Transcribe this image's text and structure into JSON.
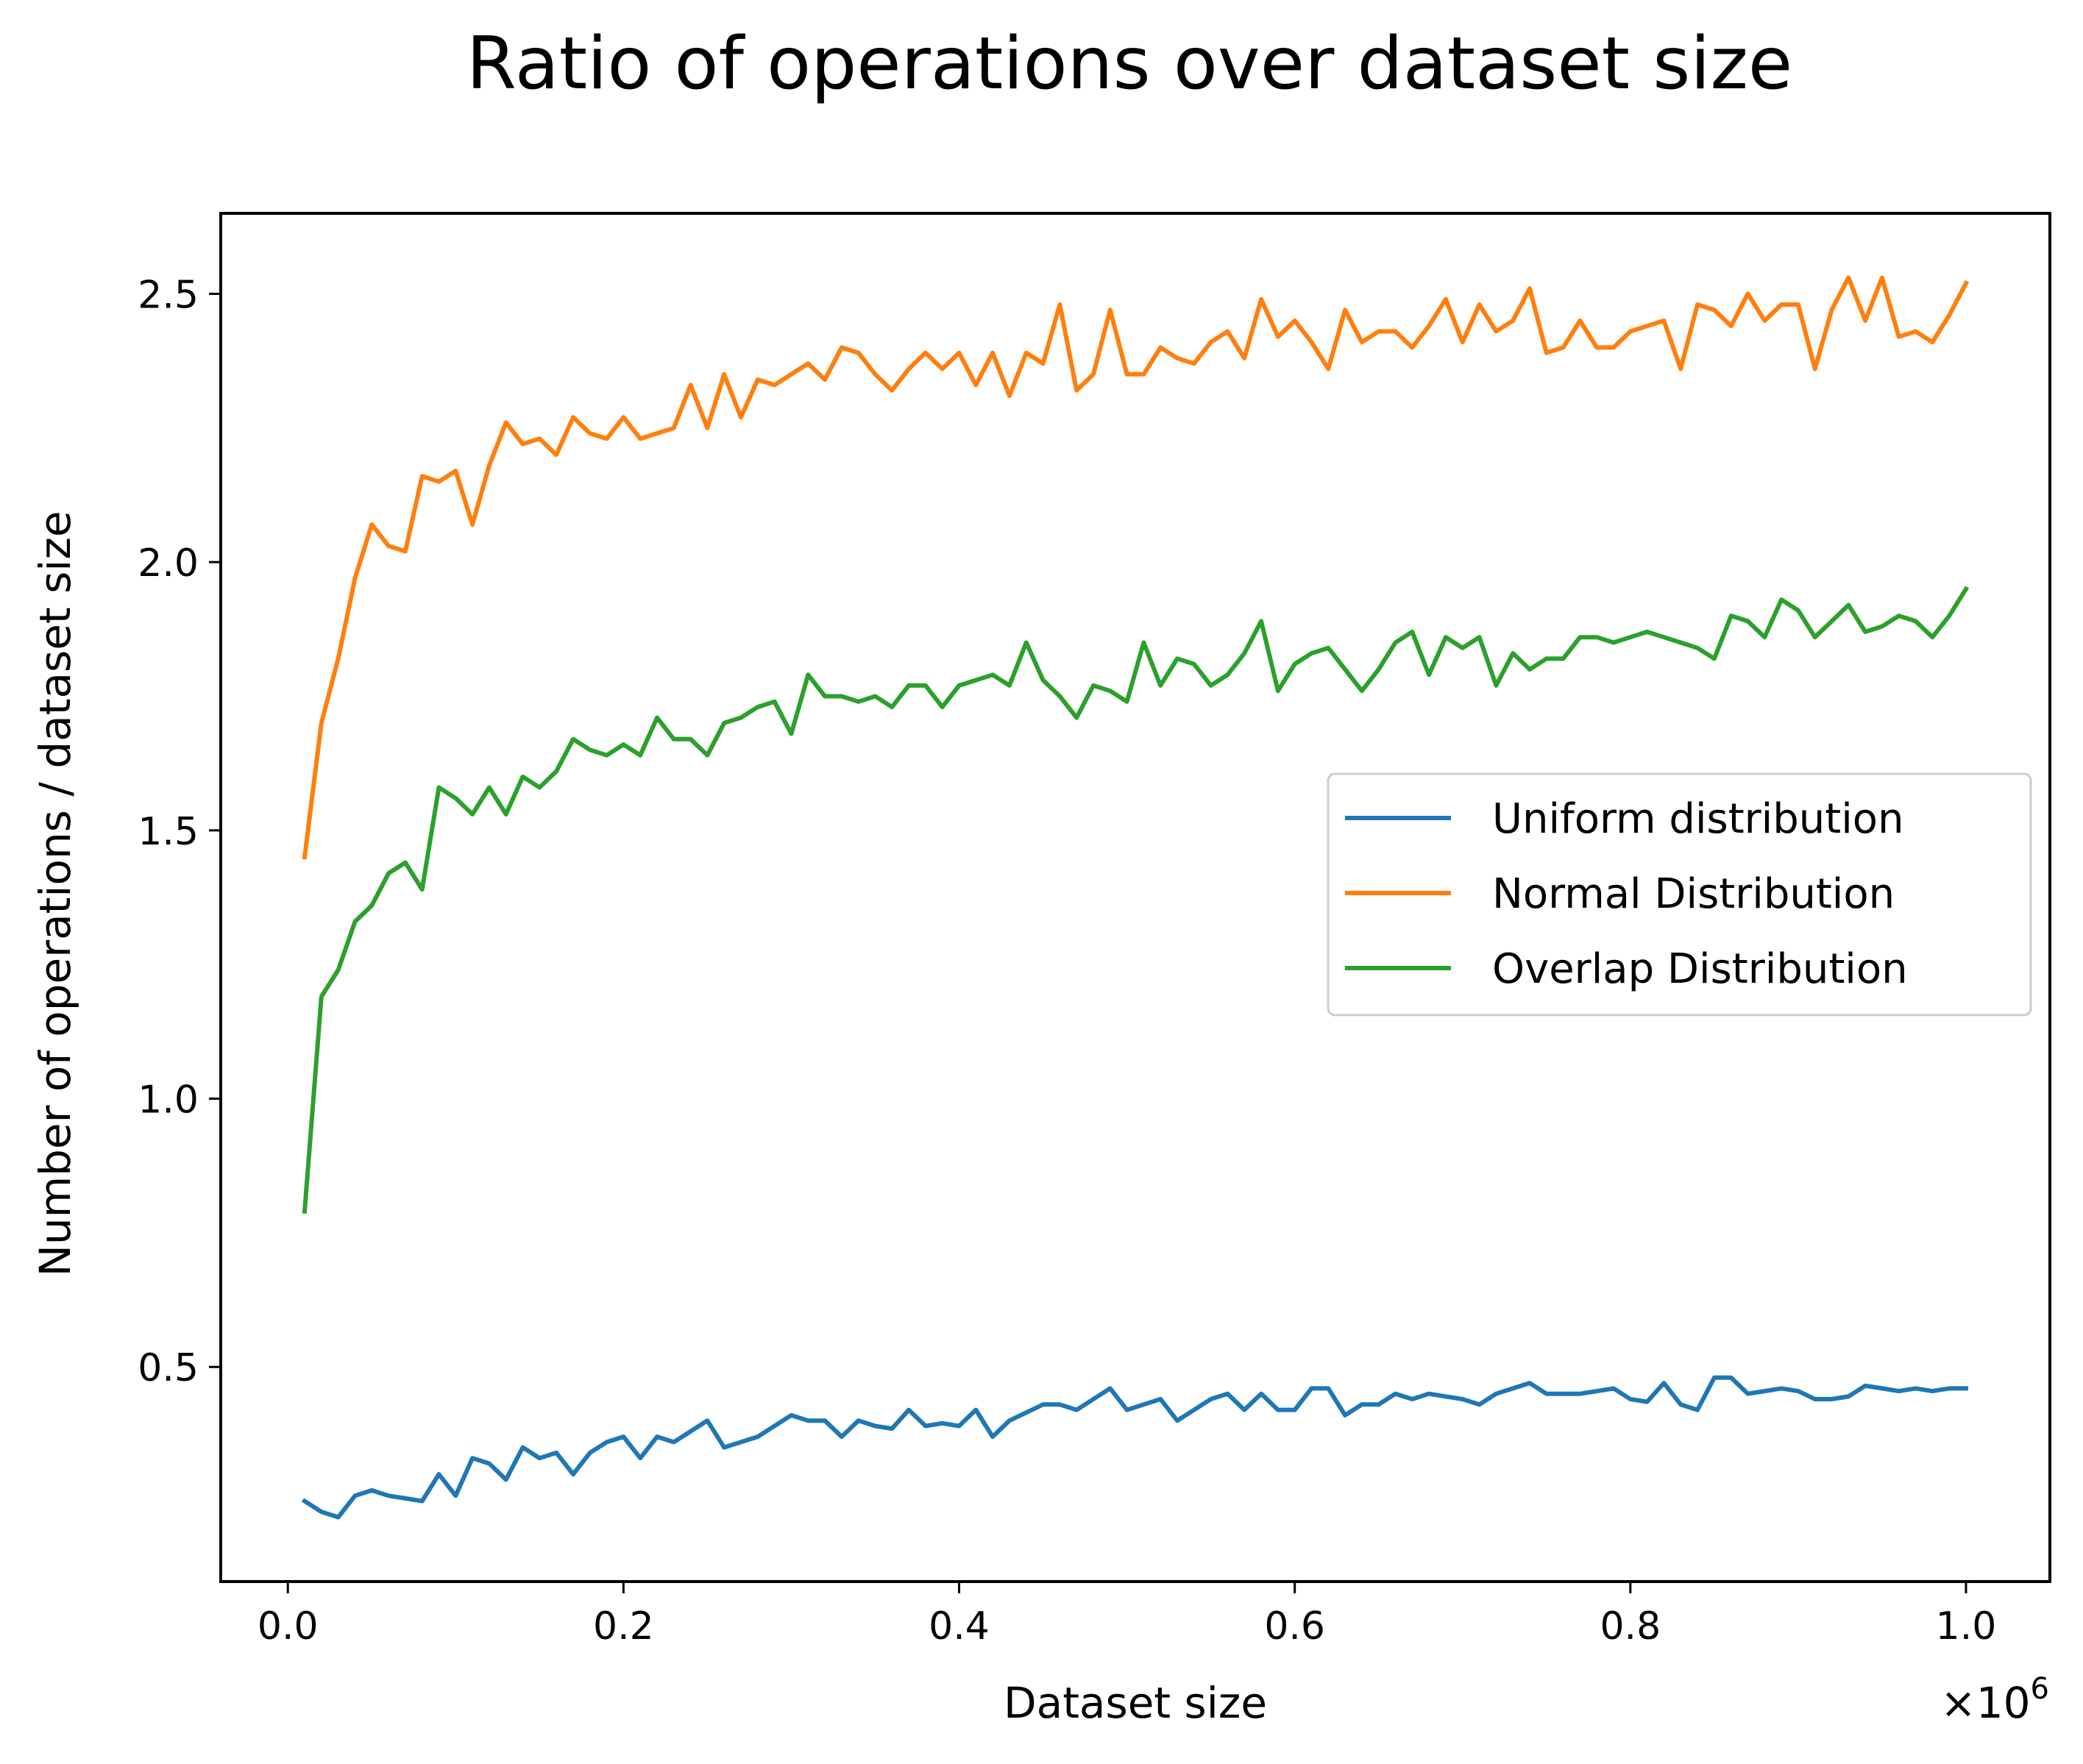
{
  "chart_data": {
    "type": "line",
    "title": "Ratio of operations over dataset size",
    "xlabel": "Dataset size",
    "ylabel": "Number of operations / dataset size",
    "x_offset_label": "×10",
    "x_offset_exponent": "6",
    "xlim": [
      -40000,
      1050000
    ],
    "ylim": [
      0.1,
      2.65
    ],
    "xticks": [
      0,
      200000,
      400000,
      600000,
      800000,
      1000000
    ],
    "xtick_labels": [
      "0.0",
      "0.2",
      "0.4",
      "0.6",
      "0.8",
      "1.0"
    ],
    "yticks": [
      0.5,
      1.0,
      1.5,
      2.0,
      2.5
    ],
    "ytick_labels": [
      "0.5",
      "1.0",
      "1.5",
      "2.0",
      "2.5"
    ],
    "grid": false,
    "legend_position": "center-right",
    "x": [
      10000,
      20000,
      30000,
      40000,
      50000,
      60000,
      70000,
      80000,
      90000,
      100000,
      110000,
      120000,
      130000,
      140000,
      150000,
      160000,
      170000,
      180000,
      190000,
      200000,
      210000,
      220000,
      230000,
      240000,
      250000,
      260000,
      270000,
      280000,
      290000,
      300000,
      310000,
      320000,
      330000,
      340000,
      350000,
      360000,
      370000,
      380000,
      390000,
      400000,
      410000,
      420000,
      430000,
      440000,
      450000,
      460000,
      470000,
      480000,
      490000,
      500000,
      510000,
      520000,
      530000,
      540000,
      550000,
      560000,
      570000,
      580000,
      590000,
      600000,
      610000,
      620000,
      630000,
      640000,
      650000,
      660000,
      670000,
      680000,
      690000,
      700000,
      710000,
      720000,
      730000,
      740000,
      750000,
      760000,
      770000,
      780000,
      790000,
      800000,
      810000,
      820000,
      830000,
      840000,
      850000,
      860000,
      870000,
      880000,
      890000,
      900000,
      910000,
      920000,
      930000,
      940000,
      950000,
      960000,
      970000,
      980000,
      990000,
      1000000
    ],
    "series": [
      {
        "name": "Uniform distribution",
        "color": "#1f77b4",
        "values": [
          0.25,
          0.23,
          0.22,
          0.26,
          0.27,
          0.26,
          0.255,
          0.25,
          0.3,
          0.26,
          0.33,
          0.32,
          0.29,
          0.35,
          0.33,
          0.34,
          0.3,
          0.34,
          0.36,
          0.37,
          0.33,
          0.37,
          0.36,
          0.38,
          0.4,
          0.35,
          0.36,
          0.37,
          0.39,
          0.41,
          0.4,
          0.4,
          0.37,
          0.4,
          0.39,
          0.385,
          0.42,
          0.39,
          0.395,
          0.39,
          0.42,
          0.37,
          0.4,
          0.415,
          0.43,
          0.43,
          0.42,
          0.44,
          0.46,
          0.42,
          0.43,
          0.44,
          0.4,
          0.42,
          0.44,
          0.45,
          0.42,
          0.45,
          0.42,
          0.42,
          0.46,
          0.46,
          0.41,
          0.43,
          0.43,
          0.45,
          0.44,
          0.45,
          0.445,
          0.44,
          0.43,
          0.45,
          0.46,
          0.47,
          0.45,
          0.45,
          0.45,
          0.455,
          0.46,
          0.44,
          0.435,
          0.47,
          0.43,
          0.42,
          0.48,
          0.48,
          0.45,
          0.455,
          0.46,
          0.455,
          0.44,
          0.44,
          0.445,
          0.465,
          0.46,
          0.455,
          0.46,
          0.455,
          0.46,
          0.46
        ]
      },
      {
        "name": "Normal Distribution",
        "color": "#ff7f0e",
        "values": [
          1.45,
          1.7,
          1.82,
          1.97,
          2.07,
          2.03,
          2.02,
          2.16,
          2.15,
          2.17,
          2.07,
          2.18,
          2.26,
          2.22,
          2.23,
          2.2,
          2.27,
          2.24,
          2.23,
          2.27,
          2.23,
          2.24,
          2.25,
          2.33,
          2.25,
          2.35,
          2.27,
          2.34,
          2.33,
          2.35,
          2.37,
          2.34,
          2.4,
          2.39,
          2.35,
          2.32,
          2.36,
          2.39,
          2.36,
          2.39,
          2.33,
          2.39,
          2.31,
          2.39,
          2.37,
          2.48,
          2.32,
          2.35,
          2.47,
          2.35,
          2.35,
          2.4,
          2.38,
          2.37,
          2.41,
          2.43,
          2.38,
          2.49,
          2.42,
          2.45,
          2.41,
          2.36,
          2.47,
          2.41,
          2.43,
          2.43,
          2.4,
          2.44,
          2.49,
          2.41,
          2.48,
          2.43,
          2.45,
          2.51,
          2.39,
          2.4,
          2.45,
          2.4,
          2.4,
          2.43,
          2.44,
          2.45,
          2.36,
          2.48,
          2.47,
          2.44,
          2.5,
          2.45,
          2.48,
          2.48,
          2.36,
          2.47,
          2.53,
          2.45,
          2.53,
          2.42,
          2.43,
          2.41,
          2.46,
          2.52
        ]
      },
      {
        "name": "Overlap Distribution",
        "color": "#2ca02c",
        "values": [
          0.79,
          1.19,
          1.24,
          1.33,
          1.36,
          1.42,
          1.44,
          1.39,
          1.58,
          1.56,
          1.53,
          1.58,
          1.53,
          1.6,
          1.58,
          1.61,
          1.67,
          1.65,
          1.64,
          1.66,
          1.64,
          1.71,
          1.67,
          1.67,
          1.64,
          1.7,
          1.71,
          1.73,
          1.74,
          1.68,
          1.79,
          1.75,
          1.75,
          1.74,
          1.75,
          1.73,
          1.77,
          1.77,
          1.73,
          1.77,
          1.78,
          1.79,
          1.77,
          1.85,
          1.78,
          1.75,
          1.71,
          1.77,
          1.76,
          1.74,
          1.85,
          1.77,
          1.82,
          1.81,
          1.77,
          1.79,
          1.83,
          1.89,
          1.76,
          1.81,
          1.83,
          1.84,
          1.8,
          1.76,
          1.8,
          1.85,
          1.87,
          1.79,
          1.86,
          1.84,
          1.86,
          1.77,
          1.83,
          1.8,
          1.82,
          1.82,
          1.86,
          1.86,
          1.85,
          1.86,
          1.87,
          1.86,
          1.85,
          1.84,
          1.82,
          1.9,
          1.89,
          1.86,
          1.93,
          1.91,
          1.86,
          1.89,
          1.92,
          1.87,
          1.88,
          1.9,
          1.89,
          1.86,
          1.9,
          1.95
        ]
      }
    ]
  }
}
